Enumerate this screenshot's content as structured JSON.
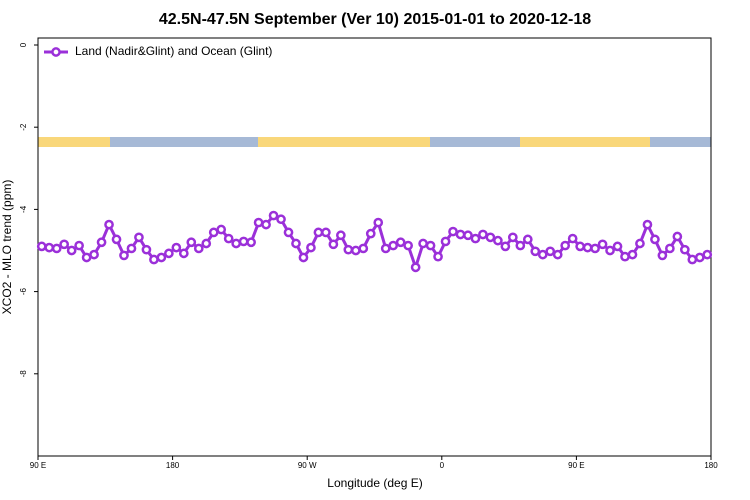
{
  "chart_data": {
    "type": "line",
    "title": "42.5N-47.5N September (Ver 10)   2015-01-01 to 2020-12-18",
    "x_label": "Longitude (deg E)",
    "y_label": "XCO2 - MLO trend (ppm)",
    "x": [
      92.5,
      97.5,
      102.5,
      107.5,
      112.5,
      117.5,
      122.5,
      127.5,
      132.5,
      137.5,
      142.5,
      147.5,
      152.5,
      157.5,
      162.5,
      167.5,
      172.5,
      177.5,
      182.5,
      187.5,
      192.5,
      197.5,
      202.5,
      207.5,
      212.5,
      217.5,
      222.5,
      227.5,
      232.5,
      237.5,
      242.5,
      247.5,
      252.5,
      257.5,
      262.5,
      267.5,
      272.5,
      277.5,
      282.5,
      287.5,
      292.5,
      297.5,
      302.5,
      307.5,
      312.5,
      317.5,
      322.5,
      327.5,
      332.5,
      337.5,
      342.5,
      347.5,
      352.5,
      357.5,
      362.5,
      367.5,
      372.5,
      377.5,
      382.5,
      387.5,
      392.5,
      397.5,
      402.5,
      407.5,
      412.5,
      417.5,
      422.5,
      427.5,
      432.5,
      437.5,
      442.5,
      447.5,
      452.5,
      457.5,
      462.5,
      467.5,
      472.5,
      477.5,
      482.5,
      487.5,
      492.5,
      497.5,
      502.5,
      507.5,
      512.5,
      517.5,
      522.5,
      527.5,
      532.5,
      537.5
    ],
    "series": [
      {
        "name": "Land (Nadir&Glint) and Ocean (Glint)",
        "color": "#9b30d9",
        "values": [
          -4.9,
          -4.93,
          -4.95,
          -4.85,
          -5.0,
          -4.88,
          -5.17,
          -5.1,
          -4.8,
          -4.37,
          -4.73,
          -5.12,
          -4.95,
          -4.68,
          -4.98,
          -5.22,
          -5.17,
          -5.07,
          -4.93,
          -5.07,
          -4.8,
          -4.95,
          -4.83,
          -4.56,
          -4.49,
          -4.71,
          -4.83,
          -4.78,
          -4.8,
          -4.32,
          -4.37,
          -4.15,
          -4.24,
          -4.56,
          -4.83,
          -5.17,
          -4.93,
          -4.56,
          -4.56,
          -4.85,
          -4.63,
          -4.98,
          -5.0,
          -4.95,
          -4.59,
          -4.32,
          -4.95,
          -4.88,
          -4.8,
          -4.88,
          -5.41,
          -4.83,
          -4.88,
          -5.15,
          -4.78,
          -4.54,
          -4.61,
          -4.63,
          -4.71,
          -4.61,
          -4.68,
          -4.76,
          -4.9,
          -4.68,
          -4.88,
          -4.73,
          -5.02,
          -5.1,
          -5.02,
          -5.1,
          -4.88,
          -4.71,
          -4.9,
          -4.93,
          -4.95,
          -4.85,
          -5.0,
          -4.9,
          -5.15,
          -5.1,
          -4.83,
          -4.37,
          -4.73,
          -5.12,
          -4.95,
          -4.66,
          -4.98,
          -5.22,
          -5.17,
          -5.1
        ]
      }
    ],
    "xlim": [
      90,
      540
    ],
    "xticks": [
      {
        "value": 90,
        "label": "90 E"
      },
      {
        "value": 180,
        "label": "180"
      },
      {
        "value": 270,
        "label": "90 W"
      },
      {
        "value": 360,
        "label": "0"
      },
      {
        "value": 450,
        "label": "90 E"
      },
      {
        "value": 540,
        "label": "180"
      }
    ],
    "ylim": [
      -10,
      0.17
    ],
    "yticks": [
      0,
      -2,
      -4,
      -6,
      -8
    ],
    "legend": "top-left"
  }
}
